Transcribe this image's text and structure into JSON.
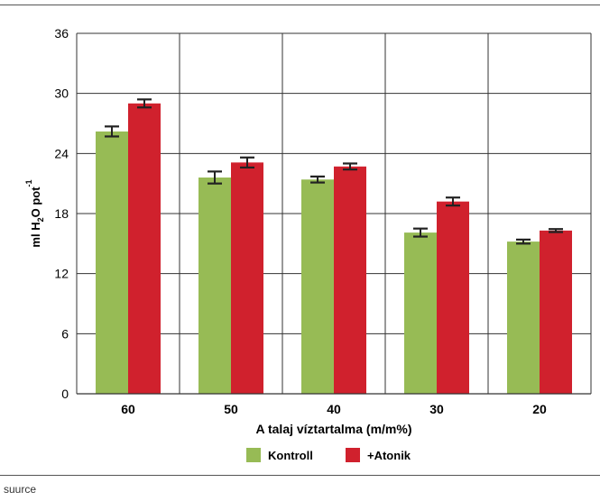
{
  "footer": {
    "source": "suurce"
  },
  "chart_data": {
    "type": "bar",
    "title": "",
    "xlabel": "A talaj víztartalma (m/m%)",
    "ylabel": {
      "prefix": "ml H",
      "sub": "2",
      "mid": "O pot",
      "sup": "-1"
    },
    "categories": [
      "60",
      "50",
      "40",
      "30",
      "20"
    ],
    "ylim": [
      0,
      36
    ],
    "yticks": [
      0,
      6,
      12,
      18,
      24,
      30,
      36
    ],
    "grid": true,
    "legend_position": "bottom",
    "series": [
      {
        "name": "Kontroll",
        "color": "#97bb55",
        "values": [
          26.2,
          21.6,
          21.4,
          16.1,
          15.2
        ],
        "errors": [
          0.5,
          0.6,
          0.3,
          0.4,
          0.2
        ]
      },
      {
        "name": "+Atonik",
        "color": "#d0212d",
        "values": [
          29.0,
          23.1,
          22.7,
          19.2,
          16.3
        ],
        "errors": [
          0.4,
          0.5,
          0.3,
          0.4,
          0.15
        ]
      }
    ]
  }
}
